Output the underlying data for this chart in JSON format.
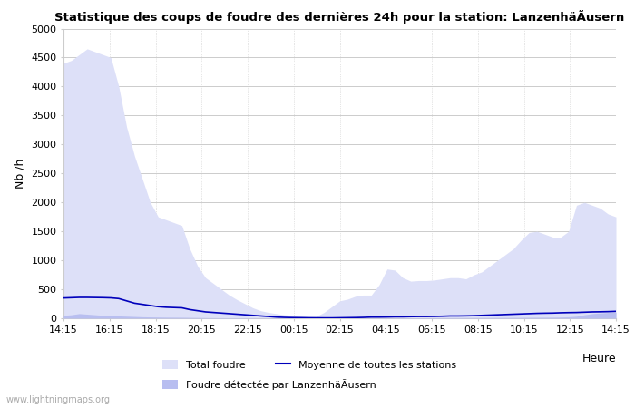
{
  "title": "Statistique des coups de foudre des dernières 24h pour la station: LanzenhäÃusern",
  "ylabel": "Nb /h",
  "xlabel": "Heure",
  "ylim": [
    0,
    5000
  ],
  "yticks": [
    0,
    500,
    1000,
    1500,
    2000,
    2500,
    3000,
    3500,
    4000,
    4500,
    5000
  ],
  "x_labels": [
    "14:15",
    "16:15",
    "18:15",
    "20:15",
    "22:15",
    "00:15",
    "02:15",
    "04:15",
    "06:15",
    "08:15",
    "10:15",
    "12:15",
    "14:15"
  ],
  "bg_color": "#ffffff",
  "grid_color": "#cccccc",
  "fill_total_color": "#dde0f8",
  "fill_local_color": "#b8bef0",
  "line_color": "#0000bb",
  "watermark": "www.lightningmaps.org",
  "legend_total": "Total foudre",
  "legend_local": "Foudre détectée par LanzenhäÃusern",
  "legend_moyenne": "Moyenne de toutes les stations",
  "total_foudre": [
    4400,
    4450,
    4550,
    4650,
    4600,
    4550,
    4500,
    4000,
    3300,
    2800,
    2400,
    2000,
    1750,
    1700,
    1650,
    1600,
    1200,
    900,
    700,
    600,
    500,
    400,
    320,
    250,
    180,
    130,
    100,
    80,
    60,
    50,
    40,
    30,
    30,
    100,
    200,
    300,
    330,
    380,
    400,
    400,
    580,
    850,
    830,
    700,
    640,
    650,
    650,
    660,
    680,
    700,
    700,
    680,
    750,
    800,
    900,
    1000,
    1100,
    1200,
    1350,
    1480,
    1500,
    1450,
    1400,
    1400,
    1500,
    1950,
    2000,
    1950,
    1900,
    1800,
    1750
  ],
  "local_foudre": [
    50,
    60,
    80,
    70,
    60,
    50,
    45,
    40,
    35,
    30,
    25,
    22,
    20,
    18,
    17,
    16,
    14,
    12,
    10,
    9,
    8,
    7,
    7,
    6,
    6,
    5,
    5,
    5,
    4,
    4,
    3,
    3,
    3,
    3,
    3,
    3,
    3,
    4,
    4,
    5,
    5,
    6,
    6,
    7,
    7,
    8,
    8,
    9,
    9,
    10,
    10,
    11,
    11,
    12,
    12,
    13,
    13,
    14,
    14,
    15,
    16,
    17,
    18,
    20,
    25,
    35,
    60,
    80,
    90,
    100,
    105
  ],
  "moyenne": [
    350,
    355,
    360,
    360,
    358,
    356,
    352,
    340,
    300,
    260,
    240,
    220,
    200,
    190,
    185,
    180,
    150,
    130,
    110,
    100,
    90,
    80,
    70,
    60,
    50,
    40,
    30,
    20,
    15,
    12,
    10,
    8,
    7,
    6,
    6,
    8,
    10,
    12,
    15,
    20,
    20,
    22,
    25,
    25,
    28,
    30,
    30,
    32,
    35,
    40,
    40,
    42,
    45,
    50,
    55,
    60,
    65,
    70,
    75,
    80,
    85,
    88,
    90,
    95,
    98,
    100,
    105,
    110,
    112,
    115,
    120
  ]
}
